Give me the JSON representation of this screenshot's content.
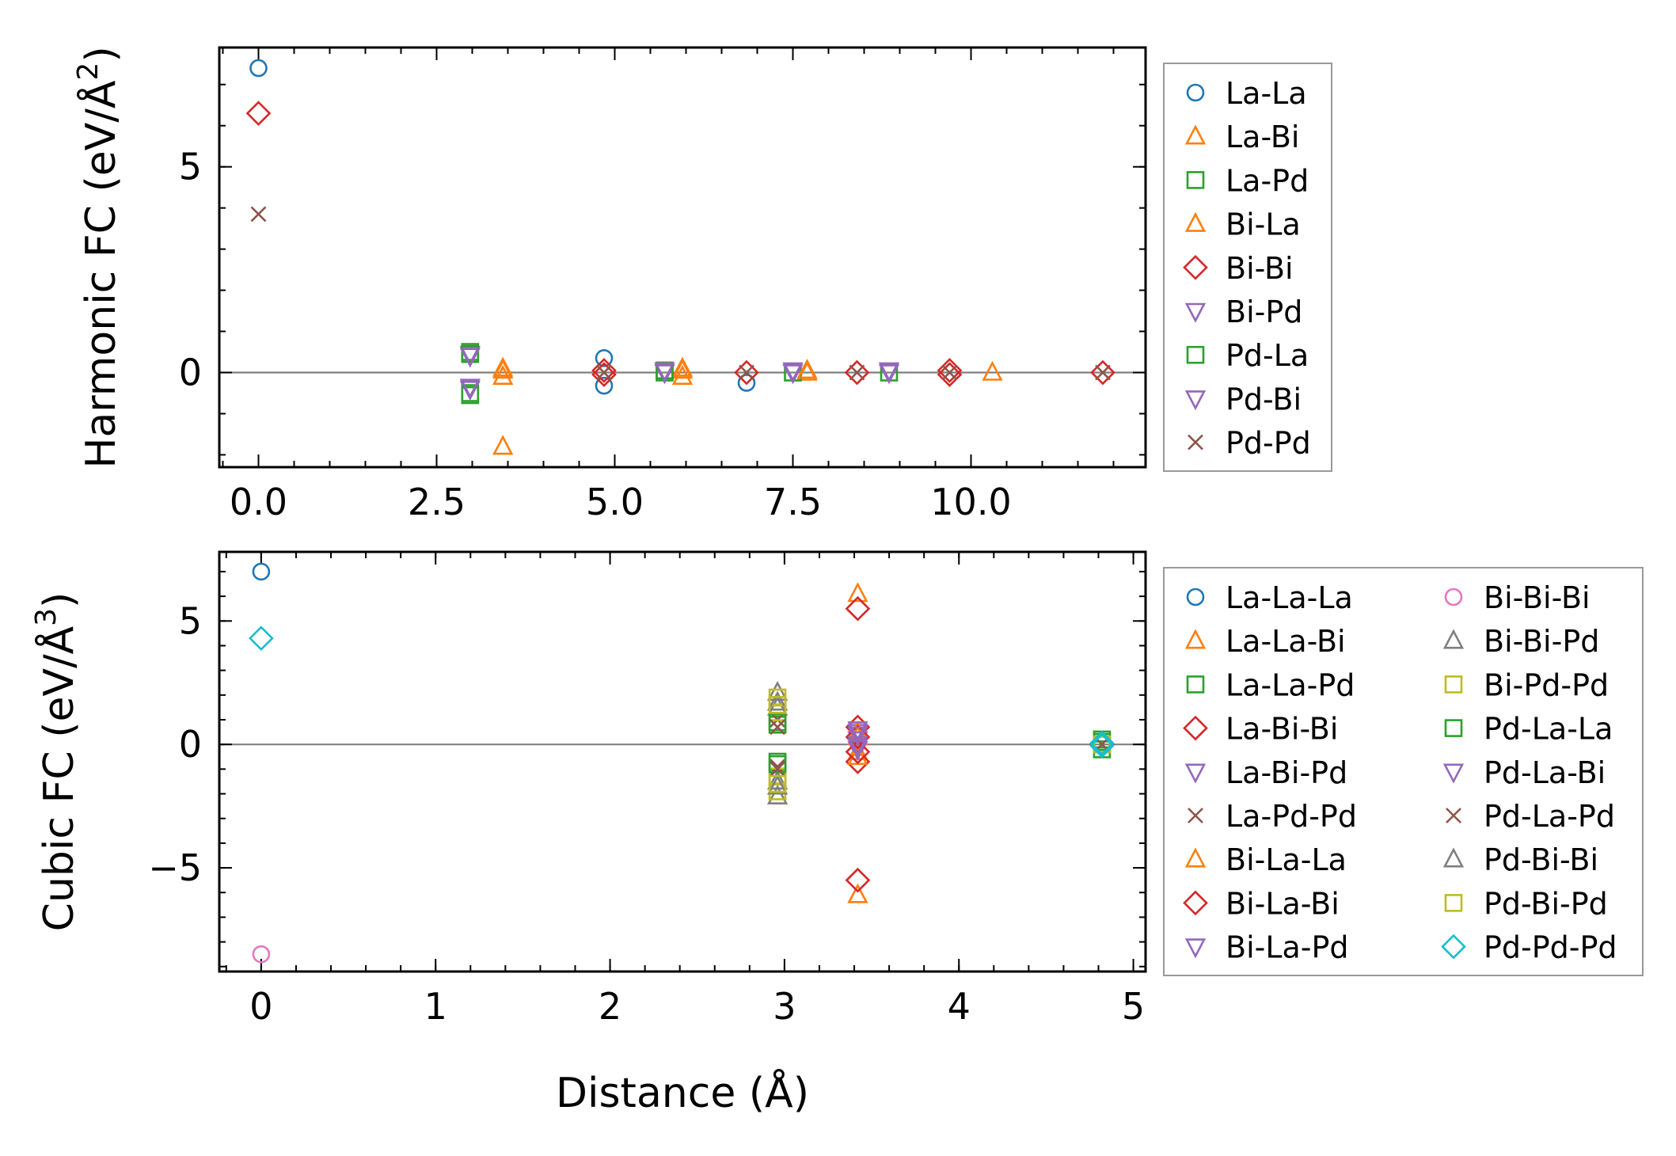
{
  "chart_data": [
    {
      "type": "scatter",
      "panel": "top",
      "xlabel": "",
      "ylabel": "Harmonic FC (eV/Å²)",
      "ylabel_parts": {
        "main": "Harmonic FC (eV/Å",
        "sup": "2",
        "tail": ")"
      },
      "xlim": [
        -0.55,
        12.45
      ],
      "ylim": [
        -2.3,
        7.9
      ],
      "xticks": [
        0.0,
        2.5,
        5.0,
        7.5,
        10.0
      ],
      "xtick_labels": [
        "0.0",
        "2.5",
        "5.0",
        "7.5",
        "10.0"
      ],
      "yticks": [
        0,
        5
      ],
      "ytick_labels": [
        "0",
        "5"
      ],
      "zero_line": true,
      "legend_columns": 1,
      "series": [
        {
          "name": "La-La",
          "marker": "circle",
          "color": "#1f77b4",
          "points": [
            [
              0,
              7.4
            ],
            [
              4.85,
              0.35
            ],
            [
              4.85,
              -0.32
            ],
            [
              6.85,
              -0.25
            ]
          ]
        },
        {
          "name": "La-Bi",
          "marker": "triangle-up",
          "color": "#ff7f0e",
          "points": [
            [
              3.43,
              0.1
            ],
            [
              3.43,
              -0.1
            ],
            [
              3.43,
              -1.8
            ],
            [
              5.95,
              0.1
            ],
            [
              5.95,
              -0.1
            ],
            [
              7.7,
              0.0
            ],
            [
              10.3,
              0.0
            ]
          ]
        },
        {
          "name": "La-Pd",
          "marker": "square",
          "color": "#2ca02c",
          "points": [
            [
              2.97,
              0.5
            ],
            [
              2.97,
              -0.5
            ],
            [
              5.7,
              0.0
            ],
            [
              7.5,
              0.0
            ],
            [
              8.85,
              0.0
            ]
          ]
        },
        {
          "name": "Bi-La",
          "marker": "triangle-up",
          "color": "#ff7f0e",
          "points": [
            [
              3.43,
              0.05
            ],
            [
              5.95,
              0.05
            ],
            [
              7.7,
              0.05
            ]
          ]
        },
        {
          "name": "Bi-Bi",
          "marker": "diamond",
          "color": "#d62728",
          "points": [
            [
              0,
              6.3
            ],
            [
              4.85,
              0.05
            ],
            [
              4.85,
              -0.05
            ],
            [
              6.85,
              0.0
            ],
            [
              8.4,
              0.0
            ],
            [
              9.7,
              0.05
            ],
            [
              9.7,
              -0.05
            ],
            [
              11.85,
              0.0
            ]
          ]
        },
        {
          "name": "Bi-Pd",
          "marker": "triangle-down",
          "color": "#9467bd",
          "points": [
            [
              2.97,
              0.45
            ],
            [
              2.97,
              -0.4
            ],
            [
              5.7,
              0.0
            ],
            [
              7.5,
              0.0
            ],
            [
              8.85,
              0.0
            ]
          ]
        },
        {
          "name": "Pd-La",
          "marker": "square",
          "color": "#2ca02c",
          "points": [
            [
              2.97,
              0.45
            ],
            [
              2.97,
              -0.55
            ],
            [
              5.7,
              0.05
            ]
          ]
        },
        {
          "name": "Pd-Bi",
          "marker": "triangle-down",
          "color": "#9467bd",
          "points": [
            [
              2.97,
              0.4
            ],
            [
              2.97,
              -0.35
            ],
            [
              5.7,
              0.05
            ],
            [
              7.5,
              0.05
            ],
            [
              8.85,
              0.05
            ]
          ]
        },
        {
          "name": "Pd-Pd",
          "marker": "x",
          "color": "#8c564b",
          "points": [
            [
              0,
              3.85
            ],
            [
              4.85,
              0.0
            ],
            [
              6.85,
              0.0
            ],
            [
              8.4,
              0.0
            ],
            [
              9.7,
              0.0
            ],
            [
              11.85,
              0.0
            ]
          ]
        }
      ]
    },
    {
      "type": "scatter",
      "panel": "bottom",
      "xlabel": "Distance (Å)",
      "ylabel": "Cubic FC (eV/Å³)",
      "ylabel_parts": {
        "main": "Cubic FC (eV/Å",
        "sup": "3",
        "tail": ")"
      },
      "xlim": [
        -0.24,
        5.07
      ],
      "ylim": [
        -9.2,
        7.8
      ],
      "xticks": [
        0,
        1,
        2,
        3,
        4,
        5
      ],
      "xtick_labels": [
        "0",
        "1",
        "2",
        "3",
        "4",
        "5"
      ],
      "yticks": [
        -5,
        0,
        5
      ],
      "ytick_labels": [
        "−5",
        "0",
        "5"
      ],
      "zero_line": true,
      "legend_columns": 2,
      "series": [
        {
          "name": "La-La-La",
          "marker": "circle",
          "color": "#1f77b4",
          "points": [
            [
              0,
              7.0
            ],
            [
              4.82,
              0.0
            ]
          ]
        },
        {
          "name": "La-La-Bi",
          "marker": "triangle-up",
          "color": "#ff7f0e",
          "points": [
            [
              3.42,
              6.1
            ],
            [
              3.42,
              -6.1
            ],
            [
              3.42,
              0.3
            ],
            [
              3.42,
              -0.3
            ]
          ]
        },
        {
          "name": "La-La-Pd",
          "marker": "square",
          "color": "#2ca02c",
          "points": [
            [
              2.96,
              0.8
            ],
            [
              2.96,
              -0.7
            ],
            [
              4.82,
              0.2
            ],
            [
              4.82,
              -0.2
            ]
          ]
        },
        {
          "name": "La-Bi-Bi",
          "marker": "diamond",
          "color": "#d62728",
          "points": [
            [
              3.42,
              5.5
            ],
            [
              3.42,
              -5.5
            ],
            [
              3.42,
              0.7
            ],
            [
              3.42,
              -0.7
            ]
          ]
        },
        {
          "name": "La-Bi-Pd",
          "marker": "triangle-down",
          "color": "#9467bd",
          "points": [
            [
              3.42,
              0.5
            ],
            [
              3.42,
              0.2
            ],
            [
              3.42,
              -0.2
            ]
          ]
        },
        {
          "name": "La-Pd-Pd",
          "marker": "x",
          "color": "#8c564b",
          "points": [
            [
              2.96,
              1.0
            ],
            [
              2.96,
              -0.9
            ],
            [
              4.82,
              0.0
            ]
          ]
        },
        {
          "name": "Bi-La-La",
          "marker": "triangle-up",
          "color": "#ff7f0e",
          "points": [
            [
              3.42,
              0.5
            ],
            [
              3.42,
              -0.5
            ]
          ]
        },
        {
          "name": "Bi-La-Bi",
          "marker": "diamond",
          "color": "#d62728",
          "points": [
            [
              3.42,
              0.3
            ],
            [
              3.42,
              -0.3
            ],
            [
              4.82,
              0.0
            ]
          ]
        },
        {
          "name": "Bi-La-Pd",
          "marker": "triangle-down",
          "color": "#9467bd",
          "points": [
            [
              3.42,
              0.6
            ],
            [
              3.42,
              -0.1
            ]
          ]
        },
        {
          "name": "Bi-Bi-Bi",
          "marker": "circle",
          "color": "#e377c2",
          "points": [
            [
              0,
              -8.5
            ],
            [
              4.82,
              0.0
            ]
          ]
        },
        {
          "name": "Bi-Bi-Pd",
          "marker": "triangle-up",
          "color": "#7f7f7f",
          "points": [
            [
              2.96,
              2.1
            ],
            [
              2.96,
              -2.1
            ],
            [
              2.96,
              1.5
            ],
            [
              2.96,
              -1.5
            ]
          ]
        },
        {
          "name": "Bi-Pd-Pd",
          "marker": "square",
          "color": "#bcbd22",
          "points": [
            [
              2.96,
              1.9
            ],
            [
              2.96,
              -1.9
            ],
            [
              2.96,
              1.3
            ],
            [
              2.96,
              -1.3
            ]
          ]
        },
        {
          "name": "Pd-La-La",
          "marker": "square",
          "color": "#2ca02c",
          "points": [
            [
              2.96,
              0.9
            ],
            [
              2.96,
              -0.8
            ],
            [
              4.82,
              0.1
            ]
          ]
        },
        {
          "name": "Pd-La-Bi",
          "marker": "triangle-down",
          "color": "#9467bd",
          "points": [
            [
              3.42,
              0.4
            ],
            [
              3.42,
              0.0
            ]
          ]
        },
        {
          "name": "Pd-La-Pd",
          "marker": "x",
          "color": "#8c564b",
          "points": [
            [
              2.96,
              0.7
            ],
            [
              2.96,
              -1.0
            ]
          ]
        },
        {
          "name": "Pd-Bi-Bi",
          "marker": "triangle-up",
          "color": "#7f7f7f",
          "points": [
            [
              2.96,
              1.7
            ],
            [
              2.96,
              -1.7
            ]
          ]
        },
        {
          "name": "Pd-Bi-Pd",
          "marker": "square",
          "color": "#bcbd22",
          "points": [
            [
              2.96,
              1.6
            ],
            [
              2.96,
              -1.6
            ],
            [
              4.82,
              0.0
            ]
          ]
        },
        {
          "name": "Pd-Pd-Pd",
          "marker": "diamond",
          "color": "#17becf",
          "points": [
            [
              0,
              4.3
            ],
            [
              4.82,
              0.05
            ],
            [
              4.82,
              -0.05
            ]
          ]
        }
      ]
    }
  ]
}
